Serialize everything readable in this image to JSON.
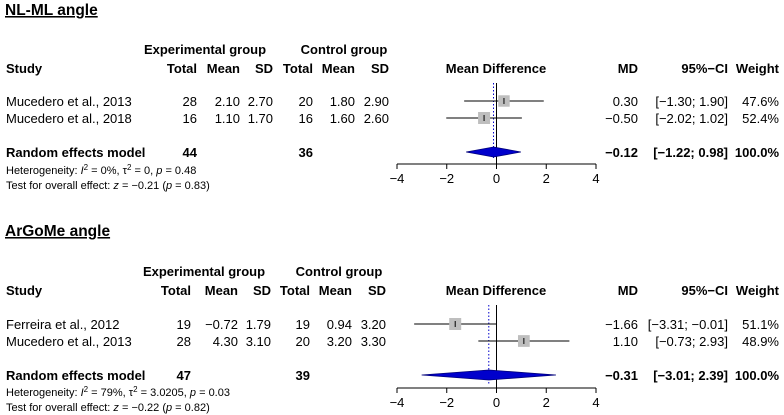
{
  "chart_data": [
    {
      "type": "forest",
      "title": "NL-ML angle",
      "headers": {
        "study": "Study",
        "experimental_group": "Experimental group",
        "control_group": "Control group",
        "total": "Total",
        "mean": "Mean",
        "sd": "SD",
        "mean_difference": "Mean Difference",
        "md": "MD",
        "ci": "95%−CI",
        "weight": "Weight"
      },
      "studies": [
        {
          "study": "Mucedero et al., 2013",
          "exp_total": "28",
          "exp_mean": "2.10",
          "exp_sd": "2.70",
          "ctl_total": "20",
          "ctl_mean": "1.80",
          "ctl_sd": "2.90",
          "md_text": "0.30",
          "ci_text": "[−1.30; 1.90]",
          "weight_text": "47.6%",
          "md": 0.3,
          "ci_low": -1.3,
          "ci_high": 1.9,
          "weight": 47.6
        },
        {
          "study": "Mucedero et al., 2018",
          "exp_total": "16",
          "exp_mean": "1.10",
          "exp_sd": "1.70",
          "ctl_total": "16",
          "ctl_mean": "1.60",
          "ctl_sd": "2.60",
          "md_text": "−0.50",
          "ci_text": "[−2.02; 1.02]",
          "weight_text": "52.4%",
          "md": -0.5,
          "ci_low": -2.02,
          "ci_high": 1.02,
          "weight": 52.4
        }
      ],
      "pooled": {
        "label": "Random effects model",
        "exp_total": "44",
        "ctl_total": "36",
        "md_text": "−0.12",
        "ci_text": "[−1.22; 0.98]",
        "weight_text": "100.0%",
        "md": -0.12,
        "ci_low": -1.22,
        "ci_high": 0.98
      },
      "heterogeneity": {
        "prefix": "Heterogeneity: ",
        "i2_label": "I",
        "i2_sup": "2",
        "i2_value": " = 0%, ",
        "tau_label": "τ",
        "tau_sup": "2",
        "tau_value": " = 0, ",
        "p_label": "p",
        "p_value": " = 0.48"
      },
      "overall": {
        "prefix": "Test for overall effect: ",
        "z_label": "z",
        "z_value": " = −0.21 (",
        "p_label": "p",
        "p_value": " = 0.83)"
      },
      "axis": {
        "min": -4,
        "max": 4,
        "ticks": [
          -4,
          -2,
          0,
          2,
          4
        ],
        "tick_labels": [
          "−4",
          "−2",
          "0",
          "2",
          "4"
        ]
      }
    },
    {
      "type": "forest",
      "title": "ArGoMe angle",
      "headers": {
        "study": "Study",
        "experimental_group": "Experimental group",
        "control_group": "Control group",
        "total": "Total",
        "mean": "Mean",
        "sd": "SD",
        "mean_difference": "Mean Difference",
        "md": "MD",
        "ci": "95%−CI",
        "weight": "Weight"
      },
      "studies": [
        {
          "study": "Ferreira et al., 2012",
          "exp_total": "19",
          "exp_mean": "−0.72",
          "exp_sd": "1.79",
          "ctl_total": "19",
          "ctl_mean": "0.94",
          "ctl_sd": "3.20",
          "md_text": "−1.66",
          "ci_text": "[−3.31; −0.01]",
          "weight_text": "51.1%",
          "md": -1.66,
          "ci_low": -3.31,
          "ci_high": -0.01,
          "weight": 51.1
        },
        {
          "study": "Mucedero et al., 2013",
          "exp_total": "28",
          "exp_mean": "4.30",
          "exp_sd": "3.10",
          "ctl_total": "20",
          "ctl_mean": "3.20",
          "ctl_sd": "3.30",
          "md_text": "1.10",
          "ci_text": "[−0.73; 2.93]",
          "weight_text": "48.9%",
          "md": 1.1,
          "ci_low": -0.73,
          "ci_high": 2.93,
          "weight": 48.9
        }
      ],
      "pooled": {
        "label": "Random effects model",
        "exp_total": "47",
        "ctl_total": "39",
        "md_text": "−0.31",
        "ci_text": "[−3.01; 2.39]",
        "weight_text": "100.0%",
        "md": -0.31,
        "ci_low": -3.01,
        "ci_high": 2.39
      },
      "heterogeneity": {
        "prefix": "Heterogeneity: ",
        "i2_label": "I",
        "i2_sup": "2",
        "i2_value": " = 79%, ",
        "tau_label": "τ",
        "tau_sup": "2",
        "tau_value": " = 3.0205, ",
        "p_label": "p",
        "p_value": " = 0.03"
      },
      "overall": {
        "prefix": "Test for overall effect: ",
        "z_label": "z",
        "z_value": " = −0.22 (",
        "p_label": "p",
        "p_value": " = 0.82)"
      },
      "axis": {
        "min": -4,
        "max": 4,
        "ticks": [
          -4,
          -2,
          0,
          2,
          4
        ],
        "tick_labels": [
          "−4",
          "−2",
          "0",
          "2",
          "4"
        ]
      }
    }
  ],
  "colors": {
    "square": "#bebebe",
    "diamond": "#0000cc",
    "diamond_stroke": "#00007a",
    "dotted_line": "#0000cc",
    "line": "#000000"
  }
}
